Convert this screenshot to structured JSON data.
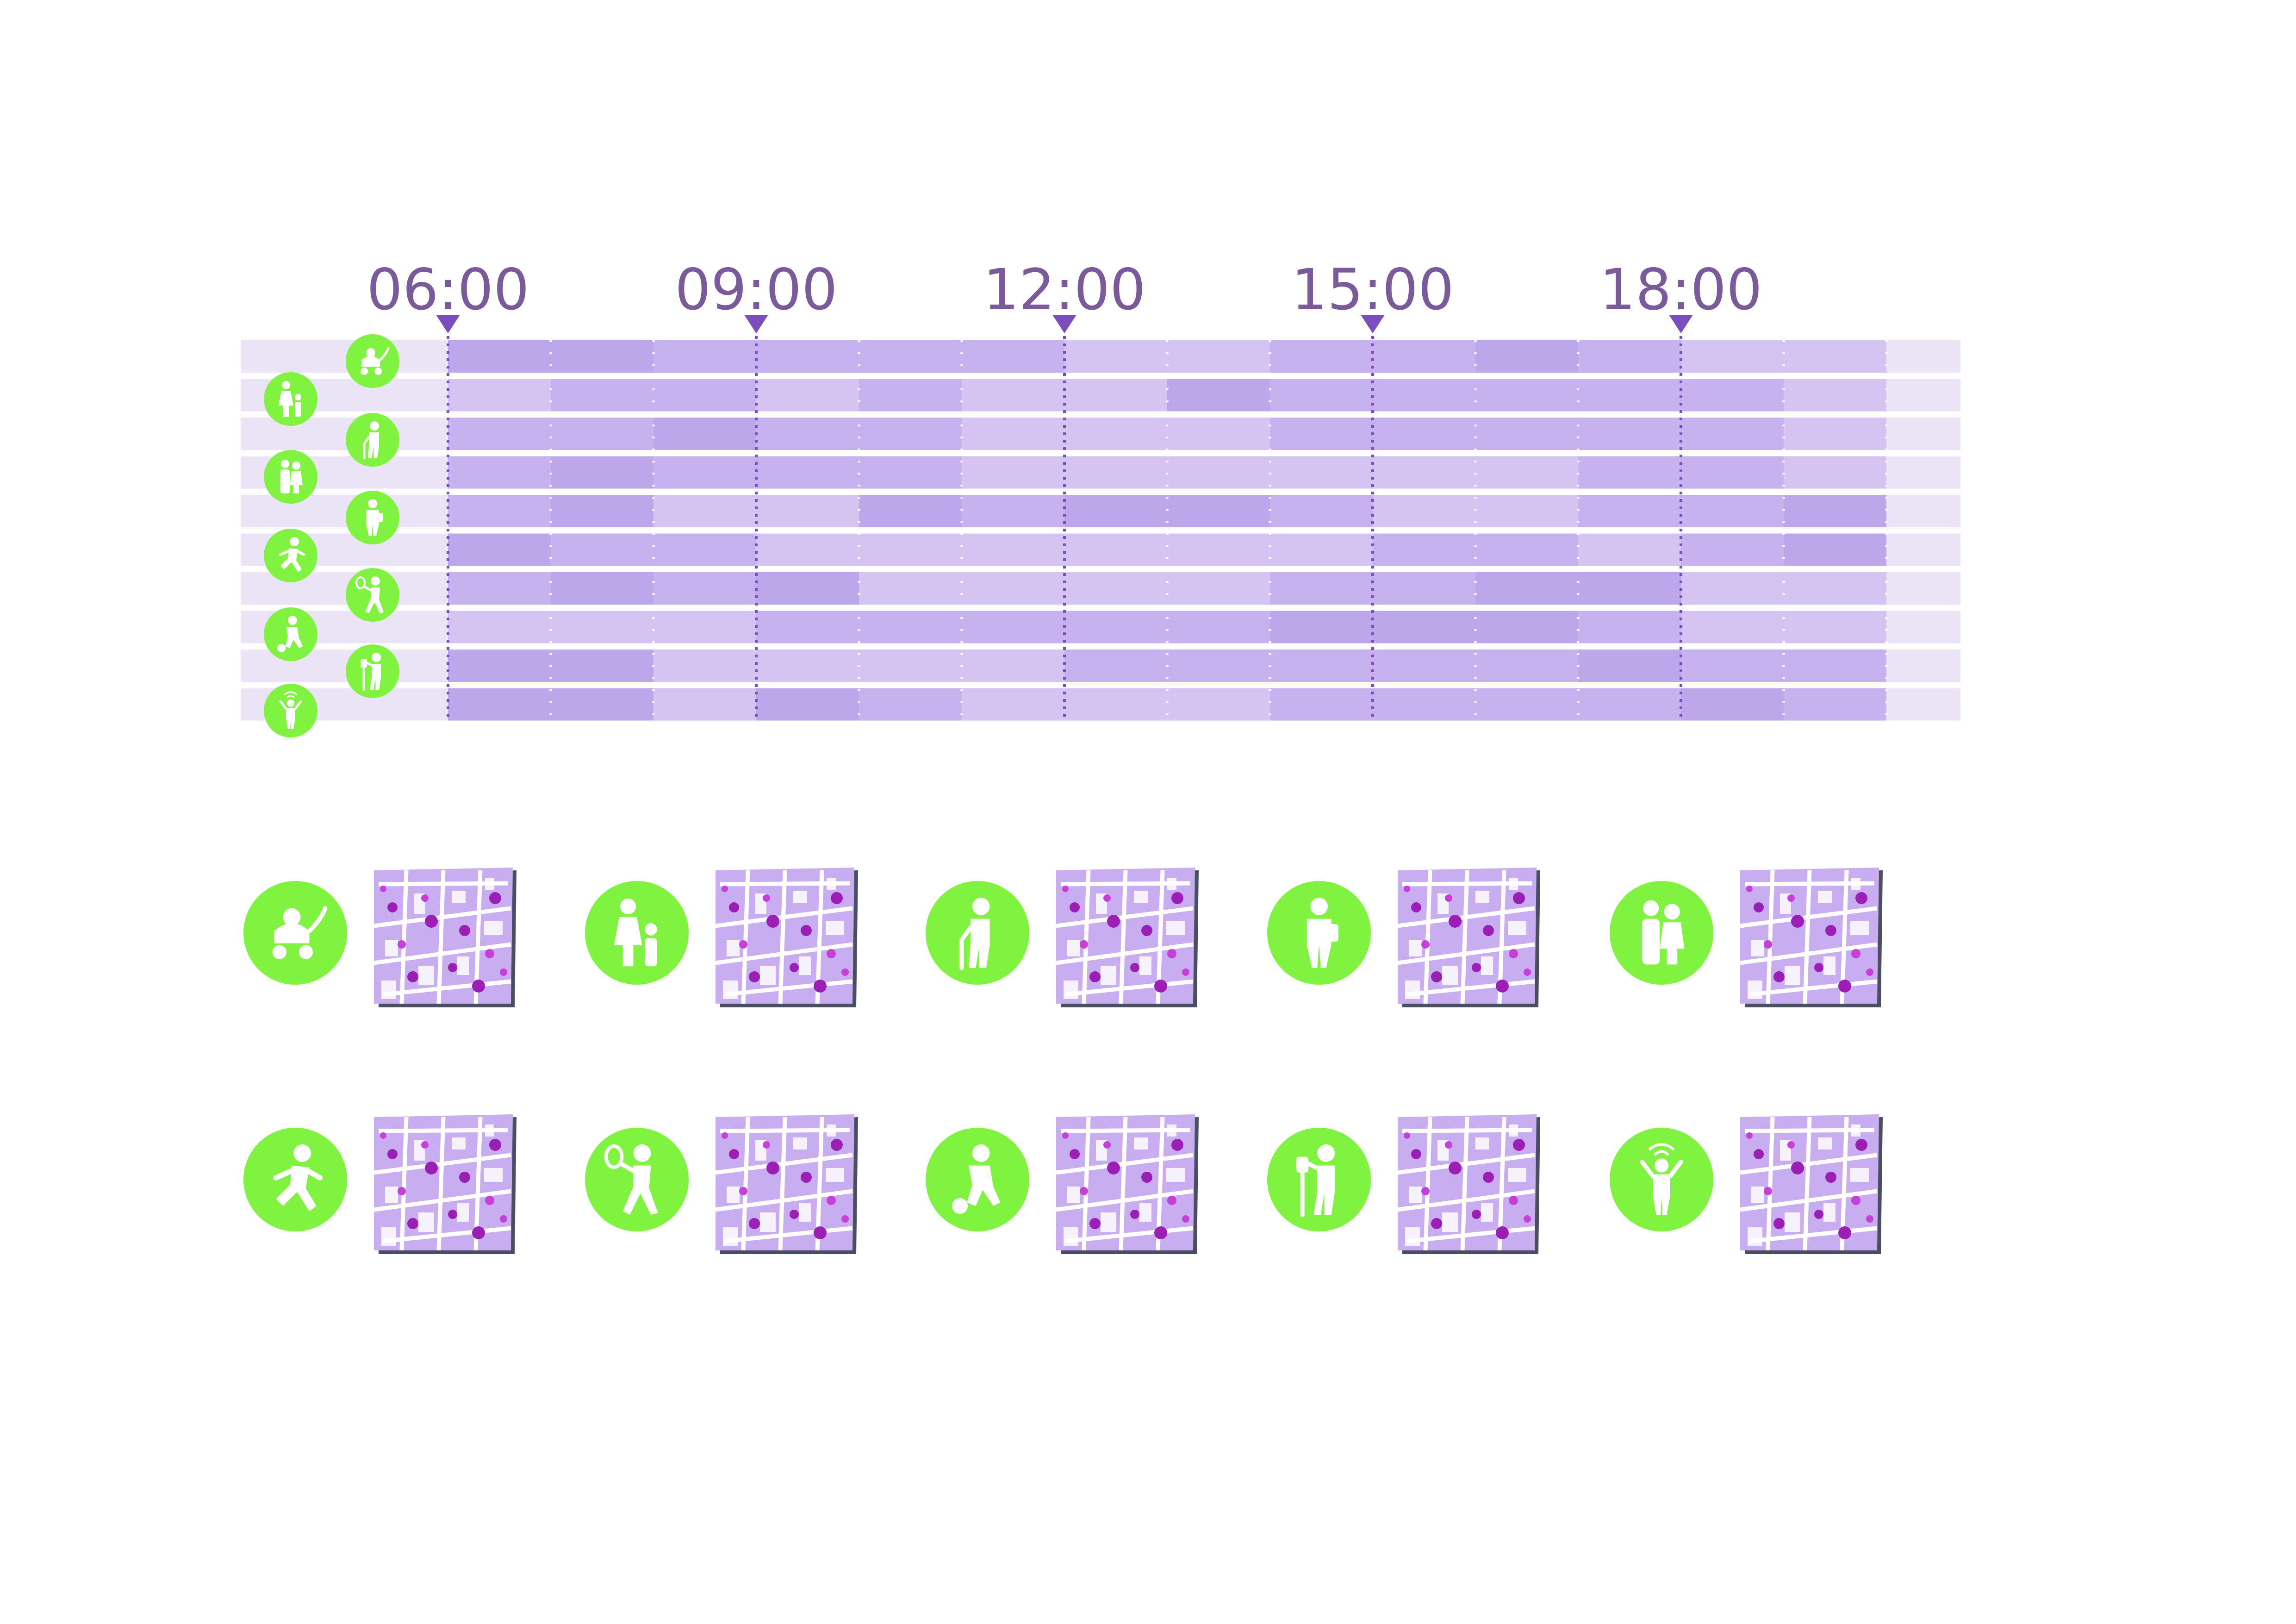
{
  "timeline": {
    "time_labels": [
      "06:00",
      "09:00",
      "12:00",
      "15:00",
      "18:00"
    ],
    "slot_count": 14,
    "shade_levels": {
      "0": "#ebe4f7",
      "1": "#e0d3f4",
      "2": "#d3c4f1",
      "3": "#c6b2ee",
      "4": "#bca7eb"
    },
    "rows": [
      {
        "group": "stroller",
        "activity": [
          4,
          4,
          3,
          3,
          3,
          3,
          2,
          2,
          3,
          3,
          4,
          3,
          2,
          2
        ]
      },
      {
        "group": "parent-and-child",
        "activity": [
          2,
          3,
          3,
          2,
          3,
          2,
          2,
          4,
          3,
          3,
          3,
          3,
          3,
          2
        ]
      },
      {
        "group": "elderly-with-cane",
        "activity": [
          3,
          3,
          4,
          3,
          3,
          2,
          2,
          2,
          3,
          3,
          3,
          3,
          3,
          2
        ]
      },
      {
        "group": "family",
        "activity": [
          3,
          4,
          3,
          3,
          3,
          2,
          2,
          2,
          2,
          2,
          2,
          3,
          3,
          2
        ]
      },
      {
        "group": "walker",
        "activity": [
          3,
          4,
          2,
          2,
          4,
          3,
          4,
          4,
          3,
          2,
          2,
          3,
          3,
          4
        ]
      },
      {
        "group": "runner",
        "activity": [
          4,
          3,
          3,
          2,
          2,
          2,
          2,
          2,
          2,
          3,
          3,
          2,
          3,
          4
        ]
      },
      {
        "group": "tennis-player",
        "activity": [
          3,
          4,
          3,
          4,
          2,
          2,
          2,
          2,
          3,
          3,
          4,
          4,
          2,
          2
        ]
      },
      {
        "group": "soccer-player",
        "activity": [
          2,
          2,
          2,
          3,
          3,
          3,
          3,
          3,
          4,
          4,
          4,
          3,
          2,
          2
        ]
      },
      {
        "group": "elderly-exercising",
        "activity": [
          4,
          4,
          2,
          2,
          2,
          2,
          3,
          3,
          3,
          3,
          3,
          4,
          3,
          3
        ]
      },
      {
        "group": "child",
        "activity": [
          4,
          4,
          2,
          4,
          3,
          2,
          2,
          2,
          3,
          3,
          3,
          3,
          4,
          3
        ]
      }
    ],
    "colors": {
      "axis": "#7b4ec0",
      "label": "#7a5a9a",
      "icon_bg": "#7ff33f"
    }
  },
  "panels": [
    {
      "icon": "stroller-icon"
    },
    {
      "icon": "parent-and-child-icon"
    },
    {
      "icon": "elderly-with-cane-icon"
    },
    {
      "icon": "walker-with-bag-icon"
    },
    {
      "icon": "family-icon"
    },
    {
      "icon": "runner-icon"
    },
    {
      "icon": "tennis-player-icon"
    },
    {
      "icon": "soccer-player-icon"
    },
    {
      "icon": "elderly-exercising-icon"
    },
    {
      "icon": "child-with-signal-icon"
    }
  ],
  "map_style": {
    "fill": "#c8aef0",
    "street": "#ffffff",
    "hotspot": "#9b1fb5",
    "hotspot_alt": "#c63fd8",
    "shadow": "#4a4f60"
  }
}
